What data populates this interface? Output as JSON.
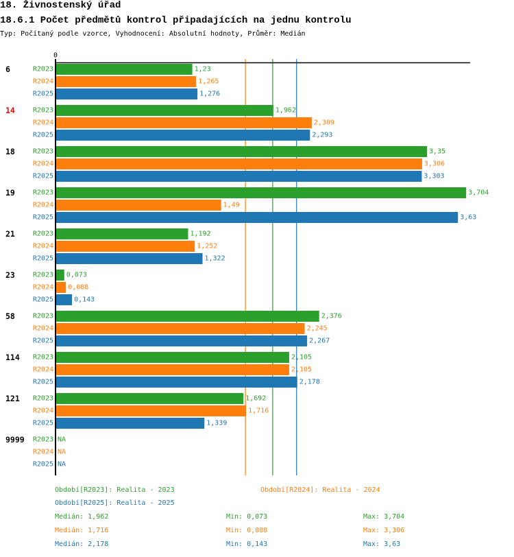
{
  "header": {
    "title": "18. Živnostenský úřad",
    "subtitle": "18.6.1 Počet předmětů kontrol připadajících na jednu kontrolu",
    "type_line": "Typ: Počítaný podle vzorce, Vyhodnocení: Absolutní hodnoty, Průměr: Medián"
  },
  "chart_data": {
    "type": "bar",
    "orientation": "horizontal",
    "title": "18.6.1 Počet předmětů kontrol připadajících na jednu kontrolu",
    "xlabel": "",
    "ylabel": "",
    "axis_zero_label": "0",
    "xlim": [
      0,
      3.704
    ],
    "grid": false,
    "categories": [
      "6",
      "14",
      "18",
      "19",
      "21",
      "23",
      "58",
      "114",
      "121",
      "9999"
    ],
    "highlighted_category": "14",
    "highlight_color": "#ff0000",
    "na_label": "NA",
    "series": [
      {
        "name": "R2023",
        "color": "#2ca02c",
        "values": [
          1.23,
          1.962,
          3.35,
          3.704,
          1.192,
          0.073,
          2.376,
          2.105,
          1.692,
          null
        ],
        "labels": [
          "1,23",
          "1,962",
          "3,35",
          "3,704",
          "1,192",
          "0,073",
          "2,376",
          "2,105",
          "1,692",
          "NA"
        ]
      },
      {
        "name": "R2024",
        "color": "#ff7f0e",
        "values": [
          1.265,
          2.309,
          3.306,
          1.49,
          1.252,
          0.088,
          2.245,
          2.105,
          1.716,
          null
        ],
        "labels": [
          "1,265",
          "2,309",
          "3,306",
          "1,49",
          "1,252",
          "0,088",
          "2,245",
          "2,105",
          "1,716",
          "NA"
        ]
      },
      {
        "name": "R2025",
        "color": "#1f77b4",
        "values": [
          1.276,
          2.293,
          3.303,
          3.63,
          1.322,
          0.143,
          2.267,
          2.178,
          1.339,
          null
        ],
        "labels": [
          "1,276",
          "2,293",
          "3,303",
          "3,63",
          "1,322",
          "0,143",
          "2,267",
          "2,178",
          "1,339",
          "NA"
        ]
      }
    ],
    "reference_lines": [
      {
        "series": "R2023",
        "kind": "median",
        "value": 1.962,
        "color": "#2ca02c"
      },
      {
        "series": "R2024",
        "kind": "median",
        "value": 1.716,
        "color": "#ff7f0e"
      },
      {
        "series": "R2025",
        "kind": "median",
        "value": 2.178,
        "color": "#1f77b4"
      }
    ],
    "legend_placement": "bottom"
  },
  "legend": {
    "periods": [
      {
        "label": "Období[R2023]: Realita - 2023"
      },
      {
        "label": "Období[R2024]: Realita - 2024"
      },
      {
        "label": "Období[R2025]: Realita - 2025"
      }
    ],
    "stats": [
      {
        "median": "Medián: 1,962",
        "min": "Min: 0,073",
        "max": "Max: 3,704"
      },
      {
        "median": "Medián: 1,716",
        "min": "Min: 0,088",
        "max": "Max: 3,306"
      },
      {
        "median": "Medián: 2,178",
        "min": "Min: 0,143",
        "max": "Max: 3,63"
      }
    ]
  }
}
